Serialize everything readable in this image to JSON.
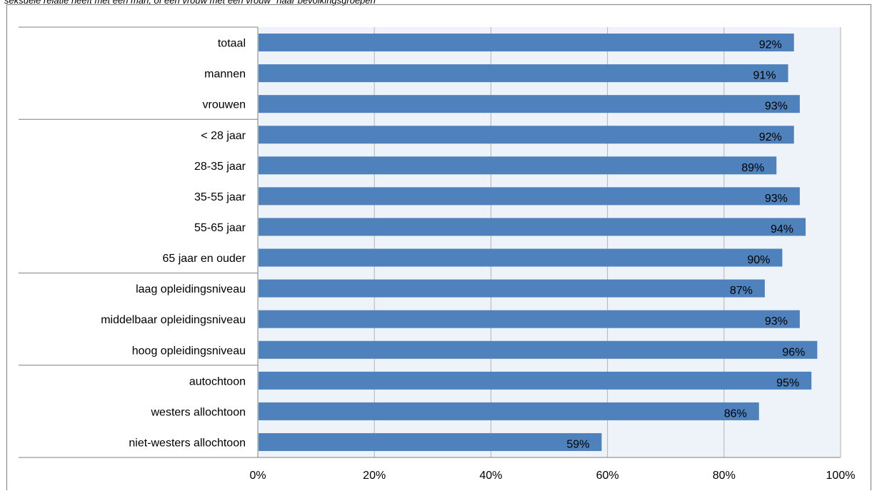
{
  "chart_data": {
    "type": "bar",
    "orientation": "horizontal",
    "subtitle": "seksuele relatie heeft met een man, of een vrouw met een vrouw\" naar bevolkingsgroepen",
    "categories": [
      "totaal",
      "mannen",
      "vrouwen",
      "< 28 jaar",
      "28-35 jaar",
      "35-55 jaar",
      "55-65 jaar",
      "65 jaar en ouder",
      "laag opleidingsniveau",
      "middelbaar opleidingsniveau",
      "hoog opleidingsniveau",
      "autochtoon",
      "westers allochtoon",
      "niet-westers allochtoon"
    ],
    "values": [
      92,
      91,
      93,
      92,
      89,
      93,
      94,
      90,
      87,
      93,
      96,
      95,
      86,
      59
    ],
    "data_labels": [
      "92%",
      "91%",
      "93%",
      "92%",
      "89%",
      "93%",
      "94%",
      "90%",
      "87%",
      "93%",
      "96%",
      "95%",
      "86%",
      "59%"
    ],
    "group_breaks_after": [
      0,
      2,
      7,
      10
    ],
    "xlim": [
      0,
      100
    ],
    "x_ticks": [
      "0%",
      "20%",
      "40%",
      "60%",
      "80%",
      "100%"
    ],
    "bar_color": "#4f81bd",
    "plot_background": "#eef3f9",
    "gridlines": true,
    "legend": false
  }
}
